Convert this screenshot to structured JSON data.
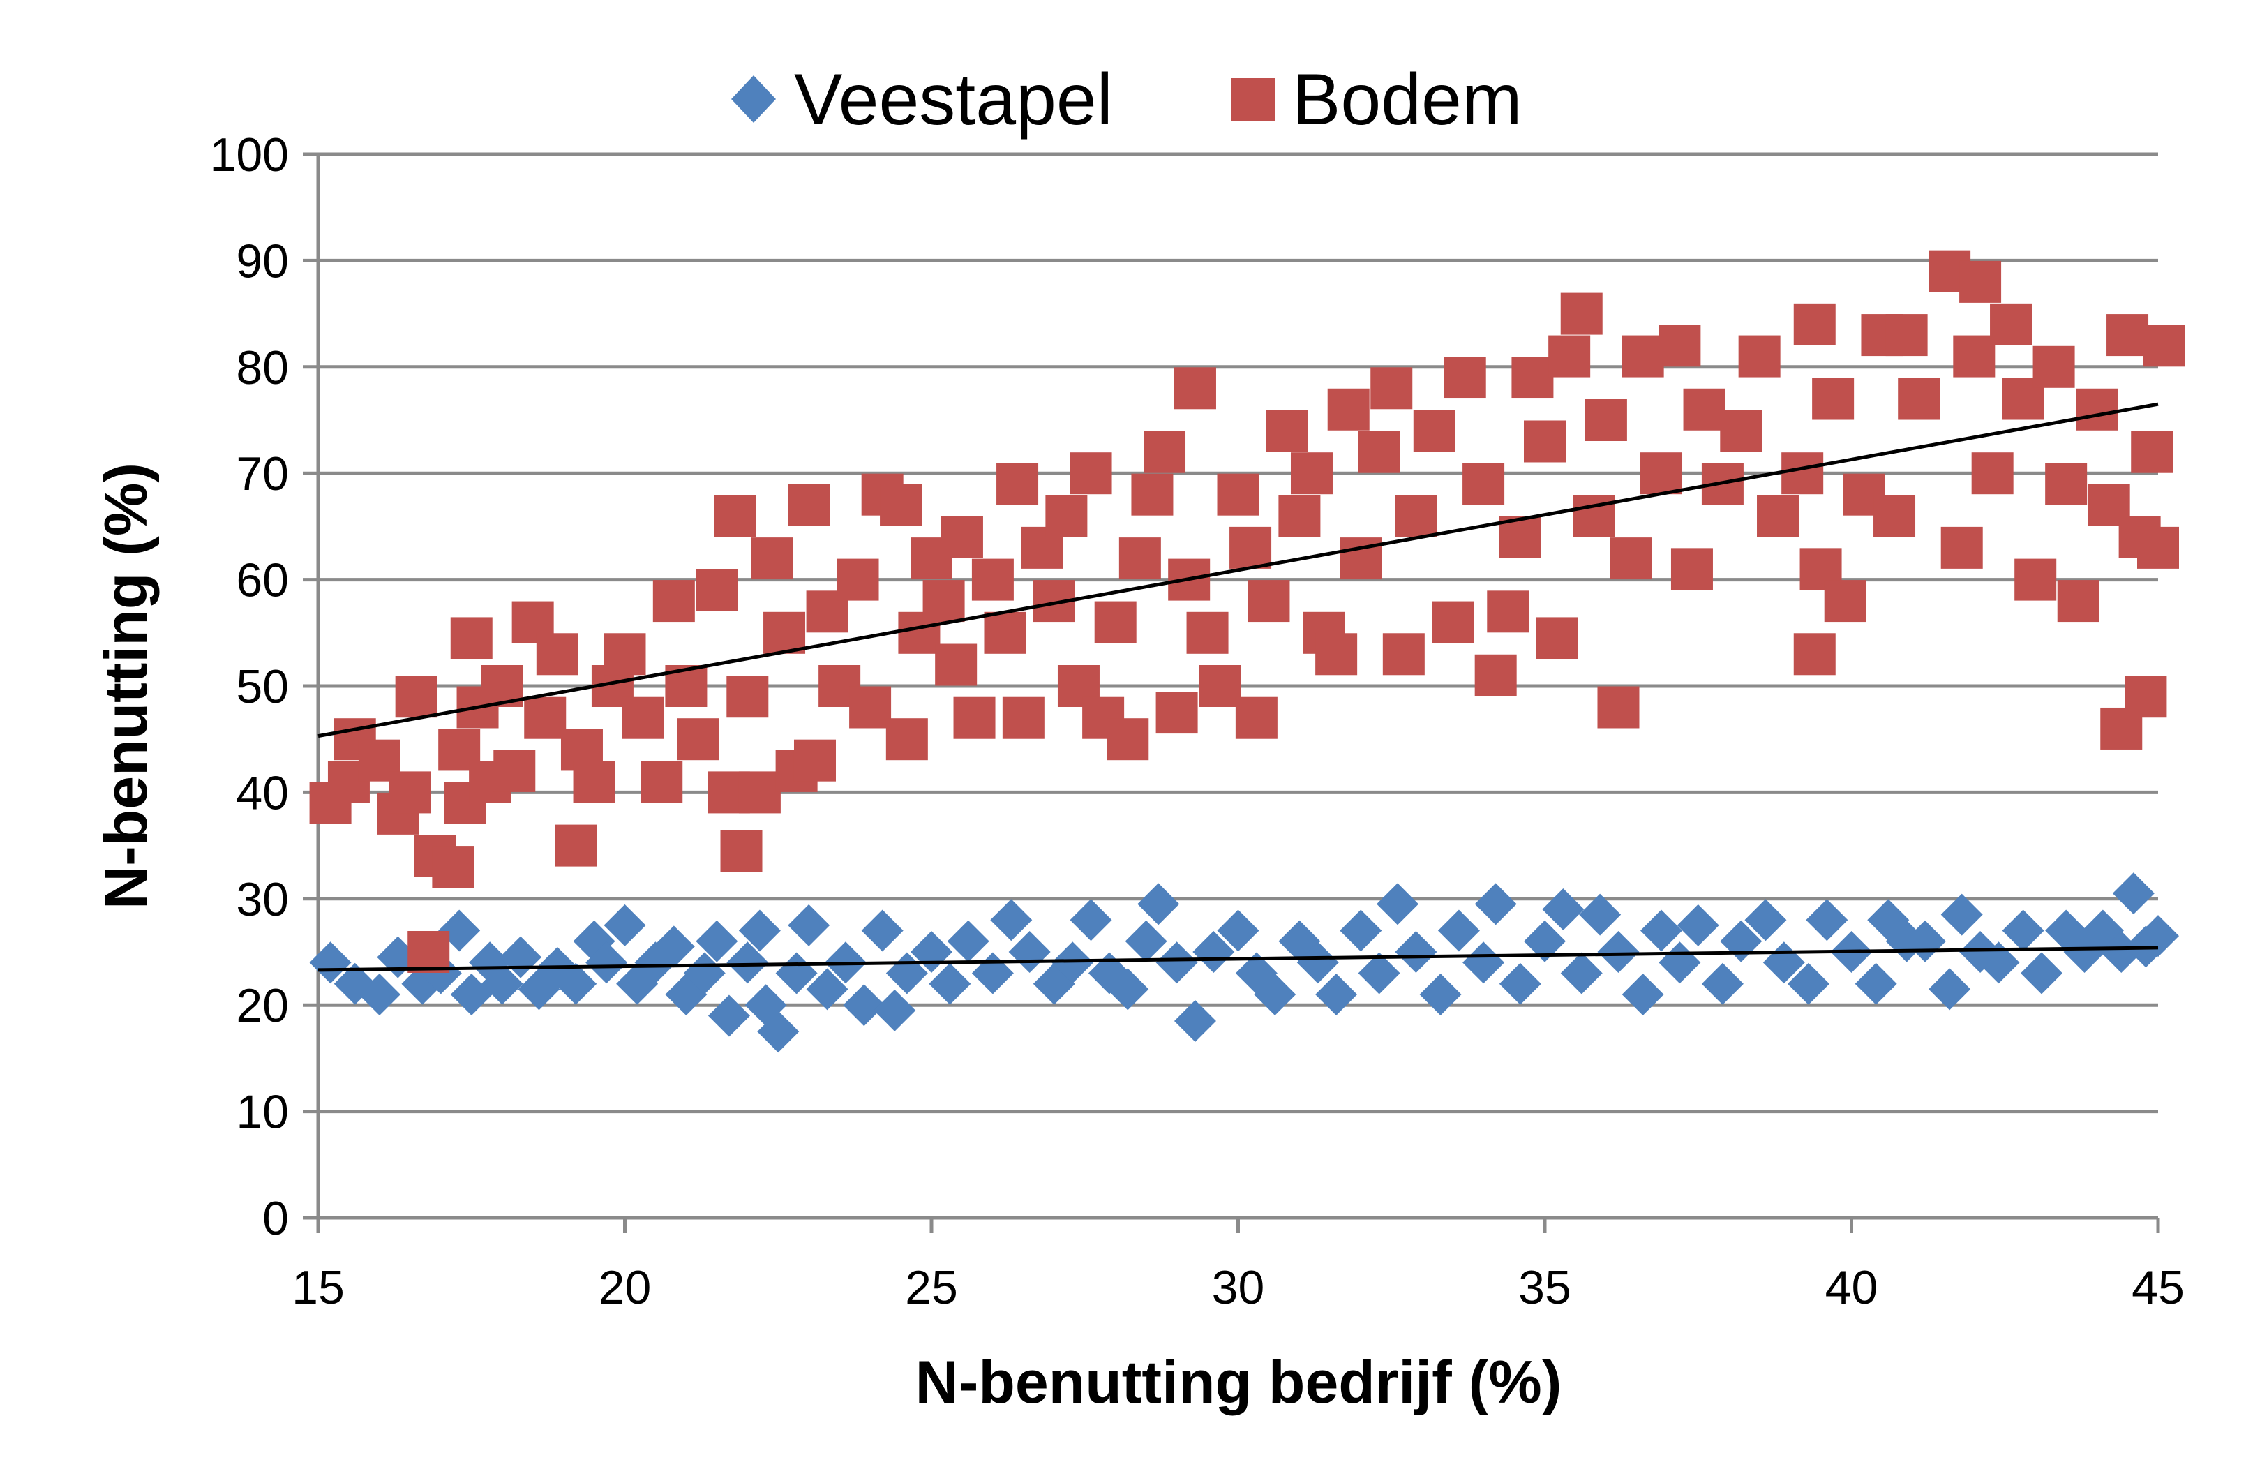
{
  "chart_data": {
    "type": "scatter",
    "title": "",
    "xlabel": "N-benutting bedrijf (%)",
    "ylabel": "N-benutting (%)",
    "xlim": [
      15,
      45
    ],
    "ylim": [
      0,
      100
    ],
    "xticks": [
      15,
      20,
      25,
      30,
      35,
      40,
      45
    ],
    "yticks": [
      0,
      10,
      20,
      30,
      40,
      50,
      60,
      70,
      80,
      90,
      100
    ],
    "xtick_labels": [
      "15",
      "20",
      "25",
      "30",
      "35",
      "40",
      "45"
    ],
    "ytick_labels": [
      "0",
      "10",
      "20",
      "30",
      "40",
      "50",
      "60",
      "70",
      "80",
      "90",
      "100"
    ],
    "grid": "horizontal",
    "legend_position": "top-center",
    "series": [
      {
        "name": "Veestapel",
        "marker": "diamond",
        "color": "#4F81BD",
        "trendline": [
          [
            15,
            23.3
          ],
          [
            45,
            25.4
          ]
        ],
        "points": [
          [
            15.2,
            24
          ],
          [
            15.6,
            22
          ],
          [
            16,
            21
          ],
          [
            16.3,
            24.5
          ],
          [
            16.7,
            22
          ],
          [
            17,
            23
          ],
          [
            17.3,
            27
          ],
          [
            17.5,
            21
          ],
          [
            17.8,
            24
          ],
          [
            18,
            22
          ],
          [
            18.3,
            24.5
          ],
          [
            18.6,
            21.5
          ],
          [
            18.9,
            23.5
          ],
          [
            19.2,
            22
          ],
          [
            19.5,
            26
          ],
          [
            19.7,
            24
          ],
          [
            20,
            27.5
          ],
          [
            20.2,
            22
          ],
          [
            20.5,
            24
          ],
          [
            20.8,
            25.5
          ],
          [
            21,
            21
          ],
          [
            21.3,
            23
          ],
          [
            21.5,
            26
          ],
          [
            21.7,
            19
          ],
          [
            22,
            24
          ],
          [
            22.2,
            27
          ],
          [
            22.3,
            20
          ],
          [
            22.5,
            17.5
          ],
          [
            22.8,
            23
          ],
          [
            23,
            27.5
          ],
          [
            23.3,
            21.5
          ],
          [
            23.6,
            24
          ],
          [
            23.9,
            20
          ],
          [
            24.2,
            27
          ],
          [
            24.4,
            19.5
          ],
          [
            24.6,
            23
          ],
          [
            25,
            25
          ],
          [
            25.3,
            22
          ],
          [
            25.6,
            26
          ],
          [
            26,
            23
          ],
          [
            26.3,
            28
          ],
          [
            26.6,
            25
          ],
          [
            27,
            22
          ],
          [
            27.3,
            24
          ],
          [
            27.6,
            28
          ],
          [
            27.9,
            23
          ],
          [
            28.2,
            21.5
          ],
          [
            28.5,
            26
          ],
          [
            28.7,
            29.5
          ],
          [
            29,
            24
          ],
          [
            29.3,
            18.5
          ],
          [
            29.6,
            25
          ],
          [
            30,
            27
          ],
          [
            30.3,
            23
          ],
          [
            30.6,
            21
          ],
          [
            31,
            26
          ],
          [
            31.3,
            24
          ],
          [
            31.6,
            21
          ],
          [
            32,
            27
          ],
          [
            32.3,
            23
          ],
          [
            32.6,
            29.5
          ],
          [
            32.9,
            25
          ],
          [
            33.3,
            21
          ],
          [
            33.6,
            27
          ],
          [
            34,
            24
          ],
          [
            34.2,
            29.5
          ],
          [
            34.6,
            22
          ],
          [
            35,
            26
          ],
          [
            35.3,
            29
          ],
          [
            35.6,
            23
          ],
          [
            35.9,
            28.5
          ],
          [
            36.2,
            25
          ],
          [
            36.6,
            21
          ],
          [
            36.9,
            27
          ],
          [
            37.2,
            24
          ],
          [
            37.5,
            27.5
          ],
          [
            37.9,
            22
          ],
          [
            38.2,
            26
          ],
          [
            38.6,
            28
          ],
          [
            38.9,
            24
          ],
          [
            39.3,
            22
          ],
          [
            39.6,
            28
          ],
          [
            40,
            25
          ],
          [
            40.4,
            22
          ],
          [
            40.6,
            28
          ],
          [
            40.9,
            26
          ],
          [
            41.2,
            26
          ],
          [
            41.6,
            21.5
          ],
          [
            41.8,
            28.5
          ],
          [
            42.1,
            25
          ],
          [
            42.4,
            24
          ],
          [
            42.8,
            27
          ],
          [
            43.1,
            23
          ],
          [
            43.5,
            27
          ],
          [
            43.8,
            25
          ],
          [
            44.1,
            27
          ],
          [
            44.4,
            25
          ],
          [
            44.6,
            30.5
          ],
          [
            44.8,
            25.5
          ],
          [
            45,
            26.5
          ]
        ]
      },
      {
        "name": "Bodem",
        "marker": "square",
        "color": "#C0504D",
        "trendline": [
          [
            15,
            45.3
          ],
          [
            45,
            76.5
          ]
        ],
        "points": [
          [
            15.2,
            39
          ],
          [
            15.5,
            41
          ],
          [
            15.6,
            45
          ],
          [
            16,
            43
          ],
          [
            16.3,
            38
          ],
          [
            16.5,
            40
          ],
          [
            16.6,
            49
          ],
          [
            16.8,
            25
          ],
          [
            16.9,
            34
          ],
          [
            17.2,
            33
          ],
          [
            17.3,
            44
          ],
          [
            17.4,
            39
          ],
          [
            17.5,
            54.5
          ],
          [
            17.6,
            48
          ],
          [
            17.8,
            41
          ],
          [
            18,
            50
          ],
          [
            18.2,
            42
          ],
          [
            18.5,
            56
          ],
          [
            18.7,
            47
          ],
          [
            18.9,
            53
          ],
          [
            19.2,
            35
          ],
          [
            19.3,
            44
          ],
          [
            19.5,
            41
          ],
          [
            19.8,
            50
          ],
          [
            20,
            53
          ],
          [
            20.3,
            47
          ],
          [
            20.6,
            41
          ],
          [
            20.8,
            58
          ],
          [
            21,
            50
          ],
          [
            21.2,
            45
          ],
          [
            21.5,
            59
          ],
          [
            21.7,
            40
          ],
          [
            21.8,
            66
          ],
          [
            21.9,
            34.5
          ],
          [
            22,
            49
          ],
          [
            22.2,
            40
          ],
          [
            22.4,
            62
          ],
          [
            22.6,
            55
          ],
          [
            22.8,
            42
          ],
          [
            23,
            67
          ],
          [
            23.1,
            43
          ],
          [
            23.3,
            57
          ],
          [
            23.5,
            50
          ],
          [
            23.8,
            60
          ],
          [
            24,
            48
          ],
          [
            24.2,
            68
          ],
          [
            24.5,
            67
          ],
          [
            24.6,
            45
          ],
          [
            24.8,
            55
          ],
          [
            25,
            62
          ],
          [
            25.2,
            58
          ],
          [
            25.4,
            52
          ],
          [
            25.5,
            64
          ],
          [
            25.7,
            47
          ],
          [
            26,
            60
          ],
          [
            26.2,
            55
          ],
          [
            26.4,
            69
          ],
          [
            26.5,
            47
          ],
          [
            26.8,
            63
          ],
          [
            27,
            58
          ],
          [
            27.2,
            66
          ],
          [
            27.4,
            50
          ],
          [
            27.6,
            70
          ],
          [
            27.8,
            47
          ],
          [
            28,
            56
          ],
          [
            28.2,
            45
          ],
          [
            28.4,
            62
          ],
          [
            28.6,
            68
          ],
          [
            28.8,
            72
          ],
          [
            29,
            47.5
          ],
          [
            29.2,
            60
          ],
          [
            29.3,
            78
          ],
          [
            29.5,
            55
          ],
          [
            29.7,
            50
          ],
          [
            30,
            68
          ],
          [
            30.2,
            63
          ],
          [
            30.3,
            47
          ],
          [
            30.5,
            58
          ],
          [
            30.8,
            74
          ],
          [
            31,
            66
          ],
          [
            31.2,
            70
          ],
          [
            31.4,
            55
          ],
          [
            31.6,
            53
          ],
          [
            31.8,
            76
          ],
          [
            32,
            62
          ],
          [
            32.3,
            72
          ],
          [
            32.5,
            78
          ],
          [
            32.7,
            53
          ],
          [
            32.9,
            66
          ],
          [
            33.2,
            74
          ],
          [
            33.5,
            56
          ],
          [
            33.7,
            79
          ],
          [
            34,
            69
          ],
          [
            34.2,
            51
          ],
          [
            34.4,
            57
          ],
          [
            34.6,
            64
          ],
          [
            34.8,
            79
          ],
          [
            35,
            73
          ],
          [
            35.2,
            54.5
          ],
          [
            35.4,
            81
          ],
          [
            35.6,
            85
          ],
          [
            35.8,
            66
          ],
          [
            36,
            75
          ],
          [
            36.2,
            48
          ],
          [
            36.4,
            62
          ],
          [
            36.6,
            81
          ],
          [
            36.9,
            70
          ],
          [
            37.2,
            82
          ],
          [
            37.4,
            61
          ],
          [
            37.6,
            76
          ],
          [
            37.9,
            69
          ],
          [
            38.2,
            74
          ],
          [
            38.5,
            81
          ],
          [
            38.8,
            66
          ],
          [
            39.2,
            70
          ],
          [
            39.4,
            84
          ],
          [
            39.5,
            61
          ],
          [
            39.4,
            53
          ],
          [
            39.7,
            77
          ],
          [
            39.9,
            58
          ],
          [
            40.2,
            68
          ],
          [
            40.5,
            83
          ],
          [
            40.7,
            66
          ],
          [
            40.9,
            83
          ],
          [
            41.1,
            77
          ],
          [
            41.6,
            89
          ],
          [
            41.8,
            63
          ],
          [
            42,
            81
          ],
          [
            42.1,
            88
          ],
          [
            42.3,
            70
          ],
          [
            42.6,
            84
          ],
          [
            42.8,
            77
          ],
          [
            43,
            60
          ],
          [
            43.3,
            80
          ],
          [
            43.5,
            69
          ],
          [
            43.7,
            58
          ],
          [
            44,
            76
          ],
          [
            44.2,
            67
          ],
          [
            44.4,
            46
          ],
          [
            44.5,
            83
          ],
          [
            44.7,
            64
          ],
          [
            44.8,
            49
          ],
          [
            44.9,
            72
          ],
          [
            45,
            63
          ],
          [
            45.1,
            82
          ]
        ]
      }
    ]
  }
}
